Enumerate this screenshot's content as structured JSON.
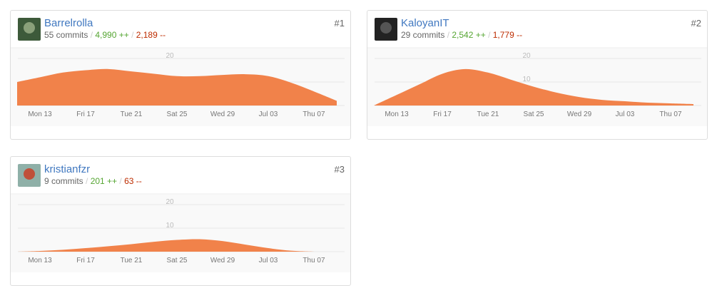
{
  "separator": "/",
  "contributors": [
    {
      "name": "Barrelrolla",
      "commits": "55 commits",
      "additions": "4,990 ++",
      "deletions": "2,189 --",
      "rank": "#1",
      "chart": {
        "type": "area",
        "color": "#f1824a",
        "categories": [
          null,
          "Mon 13",
          null,
          "Fri 17",
          null,
          "Tue 21",
          null,
          "Sat 25",
          null,
          "Wed 29",
          null,
          "Jul 03",
          null,
          "Thu 07",
          null
        ],
        "values": [
          10,
          12,
          14,
          15,
          15.5,
          14.5,
          13.5,
          12.5,
          12.5,
          13,
          13.3,
          12.5,
          9.7,
          6,
          2
        ],
        "ylim": [
          0,
          24
        ],
        "yticks": [
          10,
          20
        ]
      }
    },
    {
      "name": "KaloyanIT",
      "commits": "29 commits",
      "additions": "2,542 ++",
      "deletions": "1,779 --",
      "rank": "#2",
      "chart": {
        "type": "area",
        "color": "#f1824a",
        "categories": [
          null,
          "Mon 13",
          null,
          "Fri 17",
          null,
          "Tue 21",
          null,
          "Sat 25",
          null,
          "Wed 29",
          null,
          "Jul 03",
          null,
          "Thu 07",
          null
        ],
        "values": [
          0,
          4.5,
          9,
          13.5,
          15.5,
          14,
          11,
          8,
          5.5,
          3.6,
          2.4,
          1.8,
          1.2,
          0.9,
          0.6
        ],
        "ylim": [
          0,
          24
        ],
        "yticks": [
          10,
          20
        ]
      }
    },
    {
      "name": "kristianfzr",
      "commits": "9 commits",
      "additions": "201 ++",
      "deletions": "63 --",
      "rank": "#3",
      "chart": {
        "type": "area",
        "color": "#f1824a",
        "categories": [
          null,
          "Mon 13",
          null,
          "Fri 17",
          null,
          "Tue 21",
          null,
          "Sat 25",
          null,
          "Wed 29",
          null,
          "Jul 03",
          null,
          "Thu 07",
          null
        ],
        "values": [
          0,
          0.3,
          0.8,
          1.5,
          2.3,
          3.2,
          4.2,
          5,
          5.3,
          4.5,
          3,
          1.5,
          0.4,
          0,
          null
        ],
        "ylim": [
          0,
          24
        ],
        "yticks": [
          10,
          20
        ]
      }
    }
  ]
}
